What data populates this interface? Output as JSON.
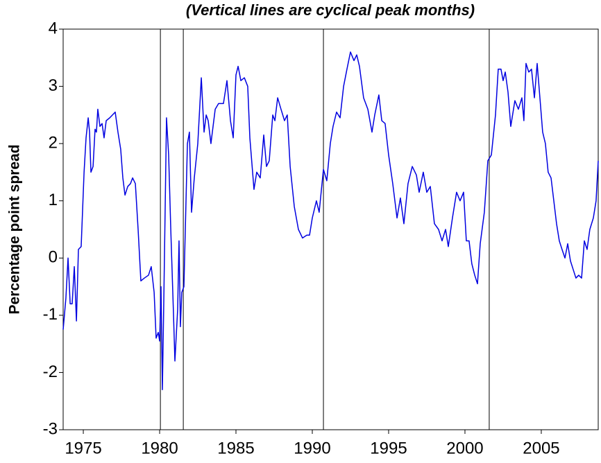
{
  "chart_data": {
    "type": "line",
    "title": "(Vertical lines are cyclical peak months)",
    "y_label": "Percentage point spread",
    "x": [
      1973.68,
      1973.86,
      1974.0,
      1974.14,
      1974.27,
      1974.41,
      1974.55,
      1974.68,
      1974.86,
      1975.05,
      1975.18,
      1975.32,
      1975.41,
      1975.5,
      1975.64,
      1975.77,
      1975.86,
      1975.95,
      1976.09,
      1976.23,
      1976.36,
      1976.5,
      1976.73,
      1976.91,
      1977.09,
      1977.27,
      1977.45,
      1977.59,
      1977.73,
      1977.91,
      1978.09,
      1978.23,
      1978.41,
      1978.59,
      1978.77,
      1979.0,
      1979.27,
      1979.45,
      1979.64,
      1979.77,
      1979.91,
      1980.0,
      1980.09,
      1980.18,
      1980.27,
      1980.45,
      1980.59,
      1980.73,
      1980.91,
      1981.0,
      1981.18,
      1981.27,
      1981.36,
      1981.45,
      1981.59,
      1981.82,
      1981.95,
      1982.09,
      1982.27,
      1982.5,
      1982.73,
      1982.91,
      1983.05,
      1983.18,
      1983.36,
      1983.64,
      1983.86,
      1984.18,
      1984.41,
      1984.64,
      1984.82,
      1985.0,
      1985.14,
      1985.32,
      1985.55,
      1985.77,
      1985.91,
      1986.18,
      1986.36,
      1986.59,
      1986.82,
      1987.0,
      1987.18,
      1987.41,
      1987.55,
      1987.73,
      1987.95,
      1988.18,
      1988.36,
      1988.55,
      1988.82,
      1989.09,
      1989.36,
      1989.64,
      1989.82,
      1990.0,
      1990.27,
      1990.45,
      1990.73,
      1990.95,
      1991.18,
      1991.36,
      1991.59,
      1991.82,
      1992.05,
      1992.27,
      1992.5,
      1992.73,
      1992.91,
      1993.09,
      1993.36,
      1993.64,
      1993.91,
      1994.09,
      1994.36,
      1994.55,
      1994.77,
      1995.0,
      1995.27,
      1995.55,
      1995.77,
      1996.0,
      1996.27,
      1996.55,
      1996.82,
      1997.0,
      1997.27,
      1997.5,
      1997.73,
      1998.0,
      1998.27,
      1998.5,
      1998.73,
      1998.91,
      1999.18,
      1999.45,
      1999.68,
      1999.91,
      2000.09,
      2000.27,
      2000.45,
      2000.64,
      2000.82,
      2001.0,
      2001.27,
      2001.5,
      2001.73,
      2002.0,
      2002.18,
      2002.36,
      2002.5,
      2002.64,
      2002.82,
      2003.0,
      2003.27,
      2003.5,
      2003.73,
      2003.86,
      2004.0,
      2004.18,
      2004.36,
      2004.55,
      2004.73,
      2004.91,
      2005.09,
      2005.27,
      2005.45,
      2005.64,
      2005.82,
      2006.0,
      2006.18,
      2006.36,
      2006.55,
      2006.73,
      2006.91,
      2007.09,
      2007.27,
      2007.45,
      2007.64,
      2007.82,
      2008.0,
      2008.18,
      2008.41,
      2008.59,
      2008.73
    ],
    "series": [
      {
        "name": "Spread",
        "color": "#0000e0",
        "values": [
          -1.25,
          -0.7,
          0.0,
          -0.8,
          -0.8,
          -0.15,
          -1.1,
          0.15,
          0.2,
          1.5,
          2.1,
          2.45,
          2.2,
          1.5,
          1.6,
          2.25,
          2.2,
          2.6,
          2.3,
          2.35,
          2.1,
          2.4,
          2.45,
          2.5,
          2.55,
          2.2,
          1.9,
          1.4,
          1.1,
          1.25,
          1.3,
          1.4,
          1.3,
          0.5,
          -0.4,
          -0.35,
          -0.3,
          -0.15,
          -0.6,
          -1.4,
          -1.3,
          -1.45,
          -0.5,
          -2.3,
          -0.8,
          2.45,
          1.8,
          0.5,
          -1.0,
          -1.8,
          -0.9,
          0.3,
          -1.2,
          -0.6,
          -0.5,
          2.0,
          2.2,
          0.8,
          1.4,
          2.0,
          3.15,
          2.2,
          2.5,
          2.4,
          2.0,
          2.6,
          2.7,
          2.7,
          3.1,
          2.4,
          2.1,
          3.2,
          3.35,
          3.1,
          3.15,
          3.0,
          2.1,
          1.2,
          1.5,
          1.4,
          2.15,
          1.6,
          1.7,
          2.5,
          2.4,
          2.8,
          2.6,
          2.4,
          2.5,
          1.6,
          0.9,
          0.5,
          0.35,
          0.4,
          0.4,
          0.7,
          1.0,
          0.8,
          1.55,
          1.35,
          2.0,
          2.3,
          2.55,
          2.45,
          3.0,
          3.3,
          3.6,
          3.45,
          3.55,
          3.35,
          2.8,
          2.6,
          2.2,
          2.5,
          2.85,
          2.4,
          2.35,
          1.8,
          1.3,
          0.7,
          1.05,
          0.6,
          1.3,
          1.6,
          1.45,
          1.15,
          1.5,
          1.15,
          1.25,
          0.6,
          0.5,
          0.3,
          0.5,
          0.2,
          0.7,
          1.15,
          1.0,
          1.15,
          0.3,
          0.3,
          -0.1,
          -0.3,
          -0.45,
          0.25,
          0.8,
          1.7,
          1.8,
          2.5,
          3.3,
          3.3,
          3.1,
          3.25,
          2.9,
          2.3,
          2.75,
          2.6,
          2.8,
          2.4,
          3.4,
          3.25,
          3.3,
          2.8,
          3.4,
          2.8,
          2.2,
          2.0,
          1.5,
          1.4,
          1.0,
          0.6,
          0.3,
          0.15,
          0.0,
          0.25,
          -0.05,
          -0.2,
          -0.35,
          -0.3,
          -0.35,
          0.3,
          0.15,
          0.5,
          0.7,
          1.0,
          1.7
        ]
      }
    ],
    "peak_lines": [
      1980.05,
      1981.55,
      1990.73,
      2001.59
    ],
    "peak_line_color": "#000000",
    "xlim": [
      1973.68,
      2008.73
    ],
    "xticks": [
      1975,
      1980,
      1985,
      1990,
      1995,
      2000,
      2005
    ],
    "ylim": [
      -3,
      4
    ],
    "yticks": [
      -3,
      -2,
      -1,
      0,
      1,
      2,
      3,
      4
    ],
    "grid": false
  }
}
